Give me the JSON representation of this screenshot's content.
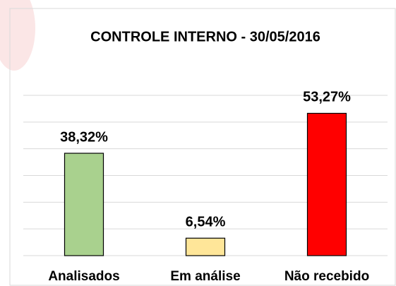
{
  "chart_data": {
    "type": "bar",
    "title": "CONTROLE INTERNO - 30/05/2016",
    "categories": [
      "Analisados",
      "Em análise",
      "Não recebido"
    ],
    "values": [
      38.32,
      6.54,
      53.27
    ],
    "value_labels": [
      "38,32%",
      "6,54%",
      "53,27%"
    ],
    "colors": [
      "#a9d18e",
      "#ffe699",
      "#ff0000"
    ],
    "ylim": [
      0,
      60
    ],
    "yticks": [
      0,
      10,
      20,
      30,
      40,
      50,
      60
    ],
    "grid": true
  }
}
